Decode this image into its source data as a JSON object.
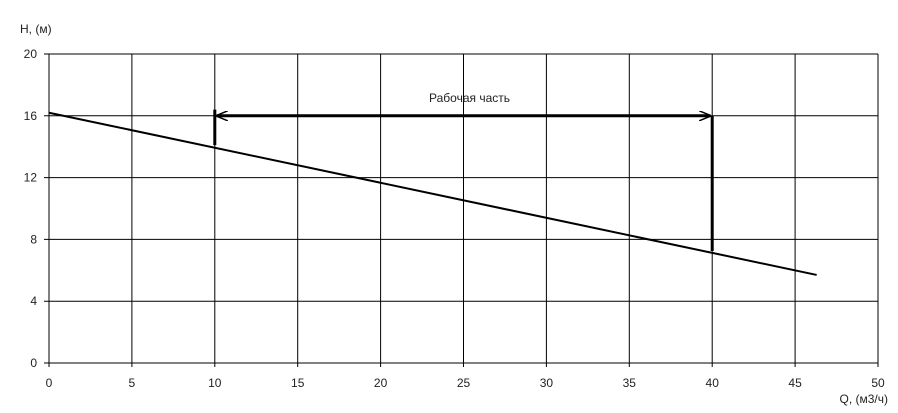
{
  "chart_data": {
    "type": "line",
    "title": "",
    "xlabel": "Q, (м3/ч)",
    "ylabel": "H, (м)",
    "xlim": [
      0,
      50
    ],
    "ylim": [
      0,
      20
    ],
    "xticks": [
      0,
      5,
      10,
      15,
      20,
      25,
      30,
      35,
      40,
      45,
      50
    ],
    "yticks": [
      0,
      4,
      8,
      12,
      16,
      20
    ],
    "grid": true,
    "series": [
      {
        "x": [
          0,
          46.3
        ],
        "y": [
          16.2,
          5.7
        ],
        "color": "#000000"
      }
    ],
    "annotations": {
      "working_range": {
        "label": "Рабочая часть",
        "x_start": 10,
        "x_end": 40,
        "y": 16,
        "left_marker": {
          "x": 10,
          "y_top": 16.4,
          "y_bottom": 14.1
        },
        "right_marker": {
          "x": 40,
          "y_top": 16,
          "y_bottom": 7.25
        }
      }
    }
  }
}
